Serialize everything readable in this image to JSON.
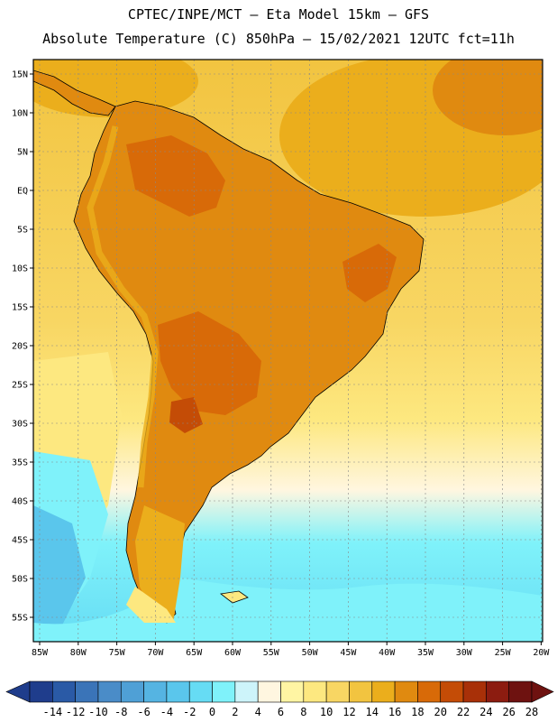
{
  "header": {
    "line1": "CPTEC/INPE/MCT –  Eta Model 15km – GFS",
    "line2": "Absolute Temperature (C) 850hPa – 15/02/2021 12UTC fct=11h"
  },
  "axes": {
    "lat_labels": [
      "15N",
      "10N",
      "5N",
      "EQ",
      "5S",
      "10S",
      "15S",
      "20S",
      "25S",
      "30S",
      "35S",
      "40S",
      "45S",
      "50S",
      "55S"
    ],
    "lon_labels": [
      "85W",
      "80W",
      "75W",
      "70W",
      "65W",
      "60W",
      "55W",
      "50W",
      "45W",
      "40W",
      "35W",
      "30W",
      "25W",
      "20W"
    ]
  },
  "colorbar": {
    "labels": [
      "-14",
      "-12",
      "-10",
      "-8",
      "-6",
      "-4",
      "-2",
      "0",
      "2",
      "4",
      "6",
      "8",
      "10",
      "12",
      "14",
      "16",
      "18",
      "20",
      "22",
      "24",
      "26",
      "28"
    ],
    "colors": [
      "#1f3d8c",
      "#2a5aa6",
      "#3a74b8",
      "#4a8cc8",
      "#4fa0d6",
      "#55b4e2",
      "#5ac6ec",
      "#66dcf4",
      "#7ff2fa",
      "#cdf4fa",
      "#fff6e0",
      "#fff5a3",
      "#fde880",
      "#f8d663",
      "#f2c440",
      "#ebae1c",
      "#e08a10",
      "#d86a08",
      "#c44c06",
      "#a83008",
      "#8c1c10",
      "#6e1210"
    ]
  },
  "map": {
    "ocean_color": "#f2c440",
    "land_color": "#e08a10"
  }
}
